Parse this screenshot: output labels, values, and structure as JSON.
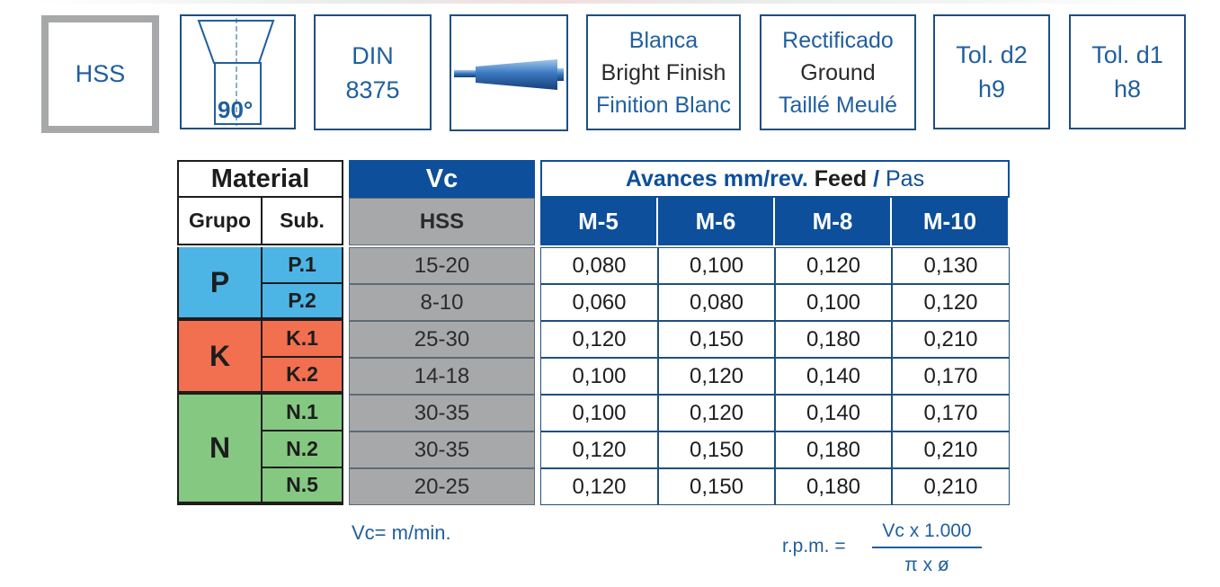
{
  "icons": {
    "hss_label": "HSS",
    "angle_label": "90°",
    "din_line1": "DIN",
    "din_line2": "8375",
    "finish": [
      "Blanca",
      "Bright Finish",
      "Finition Blanc"
    ],
    "grinding": [
      "Rectificado",
      "Ground",
      "Taillé Meulé"
    ],
    "tol_d2": [
      "Tol. d2",
      "h9"
    ],
    "tol_d1": [
      "Tol. d1",
      "h8"
    ]
  },
  "table": {
    "material_header": "Material",
    "grupo_header": "Grupo",
    "sub_header": "Sub.",
    "vc_header": "Vc",
    "vc_sub_header": "HSS",
    "feed_header_bold": "Avances mm/rev.",
    "feed_header_feed": "Feed",
    "feed_header_sep": "/",
    "feed_header_pas": "Pas",
    "sizes": [
      "M-5",
      "M-6",
      "M-8",
      "M-10"
    ],
    "groups": [
      {
        "label": "P",
        "color": "#4db4e6"
      },
      {
        "label": "K",
        "color": "#f26f4f"
      },
      {
        "label": "N",
        "color": "#85c881"
      }
    ],
    "rows": [
      {
        "sub": "P.1",
        "vc": "15-20",
        "feeds": [
          "0,080",
          "0,100",
          "0,120",
          "0,130"
        ]
      },
      {
        "sub": "P.2",
        "vc": "8-10",
        "feeds": [
          "0,060",
          "0,080",
          "0,100",
          "0,120"
        ]
      },
      {
        "sub": "K.1",
        "vc": "25-30",
        "feeds": [
          "0,120",
          "0,150",
          "0,180",
          "0,210"
        ]
      },
      {
        "sub": "K.2",
        "vc": "14-18",
        "feeds": [
          "0,100",
          "0,120",
          "0,140",
          "0,170"
        ]
      },
      {
        "sub": "N.1",
        "vc": "30-35",
        "feeds": [
          "0,100",
          "0,120",
          "0,140",
          "0,170"
        ]
      },
      {
        "sub": "N.2",
        "vc": "30-35",
        "feeds": [
          "0,120",
          "0,150",
          "0,180",
          "0,210"
        ]
      },
      {
        "sub": "N.5",
        "vc": "20-25",
        "feeds": [
          "0,120",
          "0,150",
          "0,180",
          "0,210"
        ]
      }
    ]
  },
  "footer": {
    "vc_unit": "Vc= m/min.",
    "rpm_label": "r.p.m. =",
    "rpm_numerator": "Vc x 1.000",
    "rpm_denominator": "π x ø"
  }
}
